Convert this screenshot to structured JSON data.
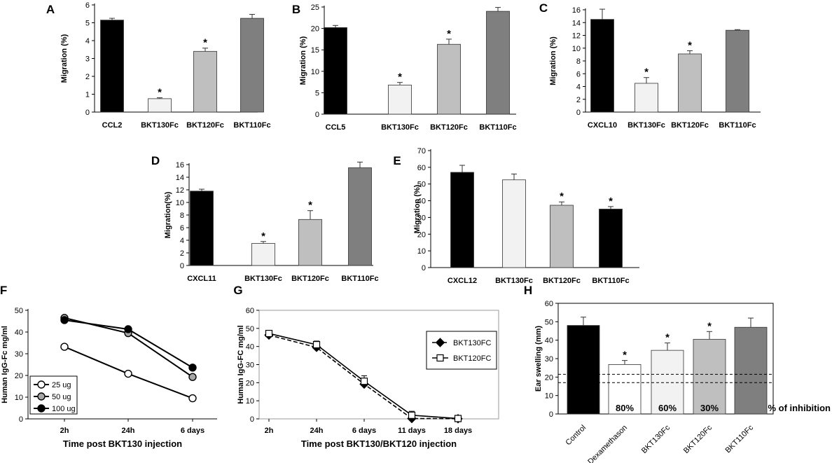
{
  "colors": {
    "black": "#000000",
    "light": "#f2f2f2",
    "mid": "#bfbfbf",
    "dark": "#7f7f7f",
    "white": "#ffffff",
    "grey_marker": "#a6a6a6"
  },
  "chart_data": [
    {
      "panel": "A",
      "type": "bar",
      "categories": [
        "CCL2",
        "BKT130Fc",
        "BKT120Fc",
        "BKT110Fc"
      ],
      "values": [
        5.15,
        0.75,
        3.4,
        5.25
      ],
      "errors": [
        0.1,
        0.05,
        0.18,
        0.22
      ],
      "significant": [
        false,
        true,
        true,
        false
      ],
      "colors": [
        "black",
        "light",
        "mid",
        "dark"
      ],
      "ylabel": "Migration (%)",
      "ylim": [
        0,
        6
      ],
      "yticks": [
        0,
        1,
        2,
        3,
        4,
        5,
        6
      ]
    },
    {
      "panel": "B",
      "type": "bar",
      "categories": [
        "CCL5",
        "BKT130Fc",
        "BKT120Fc",
        "BKT110Fc"
      ],
      "values": [
        20.2,
        6.8,
        16.3,
        24.0
      ],
      "errors": [
        0.5,
        0.6,
        1.2,
        0.9
      ],
      "significant": [
        false,
        true,
        true,
        false
      ],
      "colors": [
        "black",
        "light",
        "mid",
        "dark"
      ],
      "ylabel": "Migration (%)",
      "ylim": [
        0,
        25
      ],
      "yticks": [
        0,
        5,
        10,
        15,
        20,
        25
      ]
    },
    {
      "panel": "C",
      "type": "bar",
      "categories": [
        "CXCL10",
        "BKT130Fc",
        "BKT120Fc",
        "BKT110Fc"
      ],
      "values": [
        14.5,
        4.5,
        9.1,
        12.8
      ],
      "errors": [
        1.6,
        0.9,
        0.5,
        0.1
      ],
      "significant": [
        false,
        true,
        true,
        false
      ],
      "colors": [
        "black",
        "light",
        "mid",
        "dark"
      ],
      "ylabel": "Migration (%)",
      "ylim": [
        0,
        16
      ],
      "yticks": [
        0,
        2,
        4,
        6,
        8,
        10,
        12,
        14,
        16
      ]
    },
    {
      "panel": "D",
      "type": "bar",
      "categories": [
        "CXCL11",
        "BKT130Fc",
        "BKT120Fc",
        "BKT110Fc"
      ],
      "values": [
        11.8,
        3.5,
        7.3,
        15.5
      ],
      "errors": [
        0.3,
        0.3,
        1.4,
        0.9
      ],
      "significant": [
        false,
        true,
        true,
        false
      ],
      "colors": [
        "black",
        "light",
        "mid",
        "dark"
      ],
      "ylabel": "Migration(%)",
      "ylim": [
        0,
        16
      ],
      "yticks": [
        0,
        2,
        4,
        6,
        8,
        10,
        12,
        14,
        16
      ]
    },
    {
      "panel": "E",
      "type": "bar",
      "categories": [
        "CXCL12",
        "BKT130Fc",
        "BKT120Fc",
        "BKT110Fc"
      ],
      "values": [
        57.0,
        52.5,
        37.3,
        35.0
      ],
      "errors": [
        4.2,
        3.5,
        2.0,
        1.5
      ],
      "significant": [
        false,
        false,
        true,
        true
      ],
      "colors": [
        "black",
        "light",
        "mid",
        "black"
      ],
      "ylabel": "Migration (%)",
      "ylim": [
        0,
        70
      ],
      "yticks": [
        0,
        10,
        20,
        30,
        40,
        50,
        60,
        70
      ]
    },
    {
      "panel": "F",
      "type": "line",
      "x": [
        "2h",
        "24h",
        "6 days"
      ],
      "series": [
        {
          "name": "25 ug",
          "values": [
            33.2,
            20.8,
            9.5
          ],
          "marker": "white"
        },
        {
          "name": "50 ug",
          "values": [
            46.5,
            39.5,
            19.3
          ],
          "marker": "grey_marker"
        },
        {
          "name": "100 ug",
          "values": [
            45.5,
            41.3,
            23.6
          ],
          "marker": "black"
        }
      ],
      "xlabel": "Time post BKT130 injection",
      "ylabel": "Human IgG-Fc mg/ml",
      "ylim": [
        0,
        50
      ],
      "yticks": [
        0,
        10,
        20,
        30,
        40,
        50
      ]
    },
    {
      "panel": "G",
      "type": "line",
      "x": [
        "2h",
        "24h",
        "6 days",
        "11 days",
        "18 days"
      ],
      "series": [
        {
          "name": "BKT130FC",
          "values": [
            46.3,
            39.5,
            19.2,
            0.2,
            0.1
          ],
          "errors": [
            0.8,
            1.5,
            2.0,
            1.0,
            0.5
          ],
          "marker": "black",
          "dashed": true
        },
        {
          "name": "BKT120FC",
          "values": [
            47.2,
            41.0,
            20.8,
            2.0,
            0.2
          ],
          "errors": [
            1.0,
            2.0,
            3.0,
            2.2,
            1.0
          ],
          "marker": "white",
          "dashed": false
        }
      ],
      "xlabel": "Time post BKT130/BKT120 injection",
      "ylabel": "Human IgG-FC mg/ml",
      "ylim": [
        0,
        60
      ],
      "yticks": [
        0,
        10,
        20,
        30,
        40,
        50,
        60
      ]
    },
    {
      "panel": "H",
      "type": "bar",
      "categories": [
        "Control",
        "Dexamethason",
        "BKT130Fc",
        "BKT120Fc",
        "BKT110Fc"
      ],
      "values": [
        48.0,
        26.8,
        34.5,
        40.5,
        47.0
      ],
      "errors": [
        4.5,
        2.2,
        4.0,
        4.2,
        5.0
      ],
      "significant": [
        false,
        true,
        true,
        true,
        false
      ],
      "colors": [
        "black",
        "white",
        "light",
        "mid",
        "dark"
      ],
      "inhibition": [
        "",
        "80%",
        "60%",
        "30%",
        ""
      ],
      "inhibition_label": "% of inhibition",
      "reference_lines": [
        21.5,
        17.0
      ],
      "ylabel": "Ear swelling (mm)",
      "ylim": [
        0,
        60
      ],
      "yticks": [
        0,
        10,
        20,
        30,
        40,
        50,
        60
      ]
    }
  ]
}
